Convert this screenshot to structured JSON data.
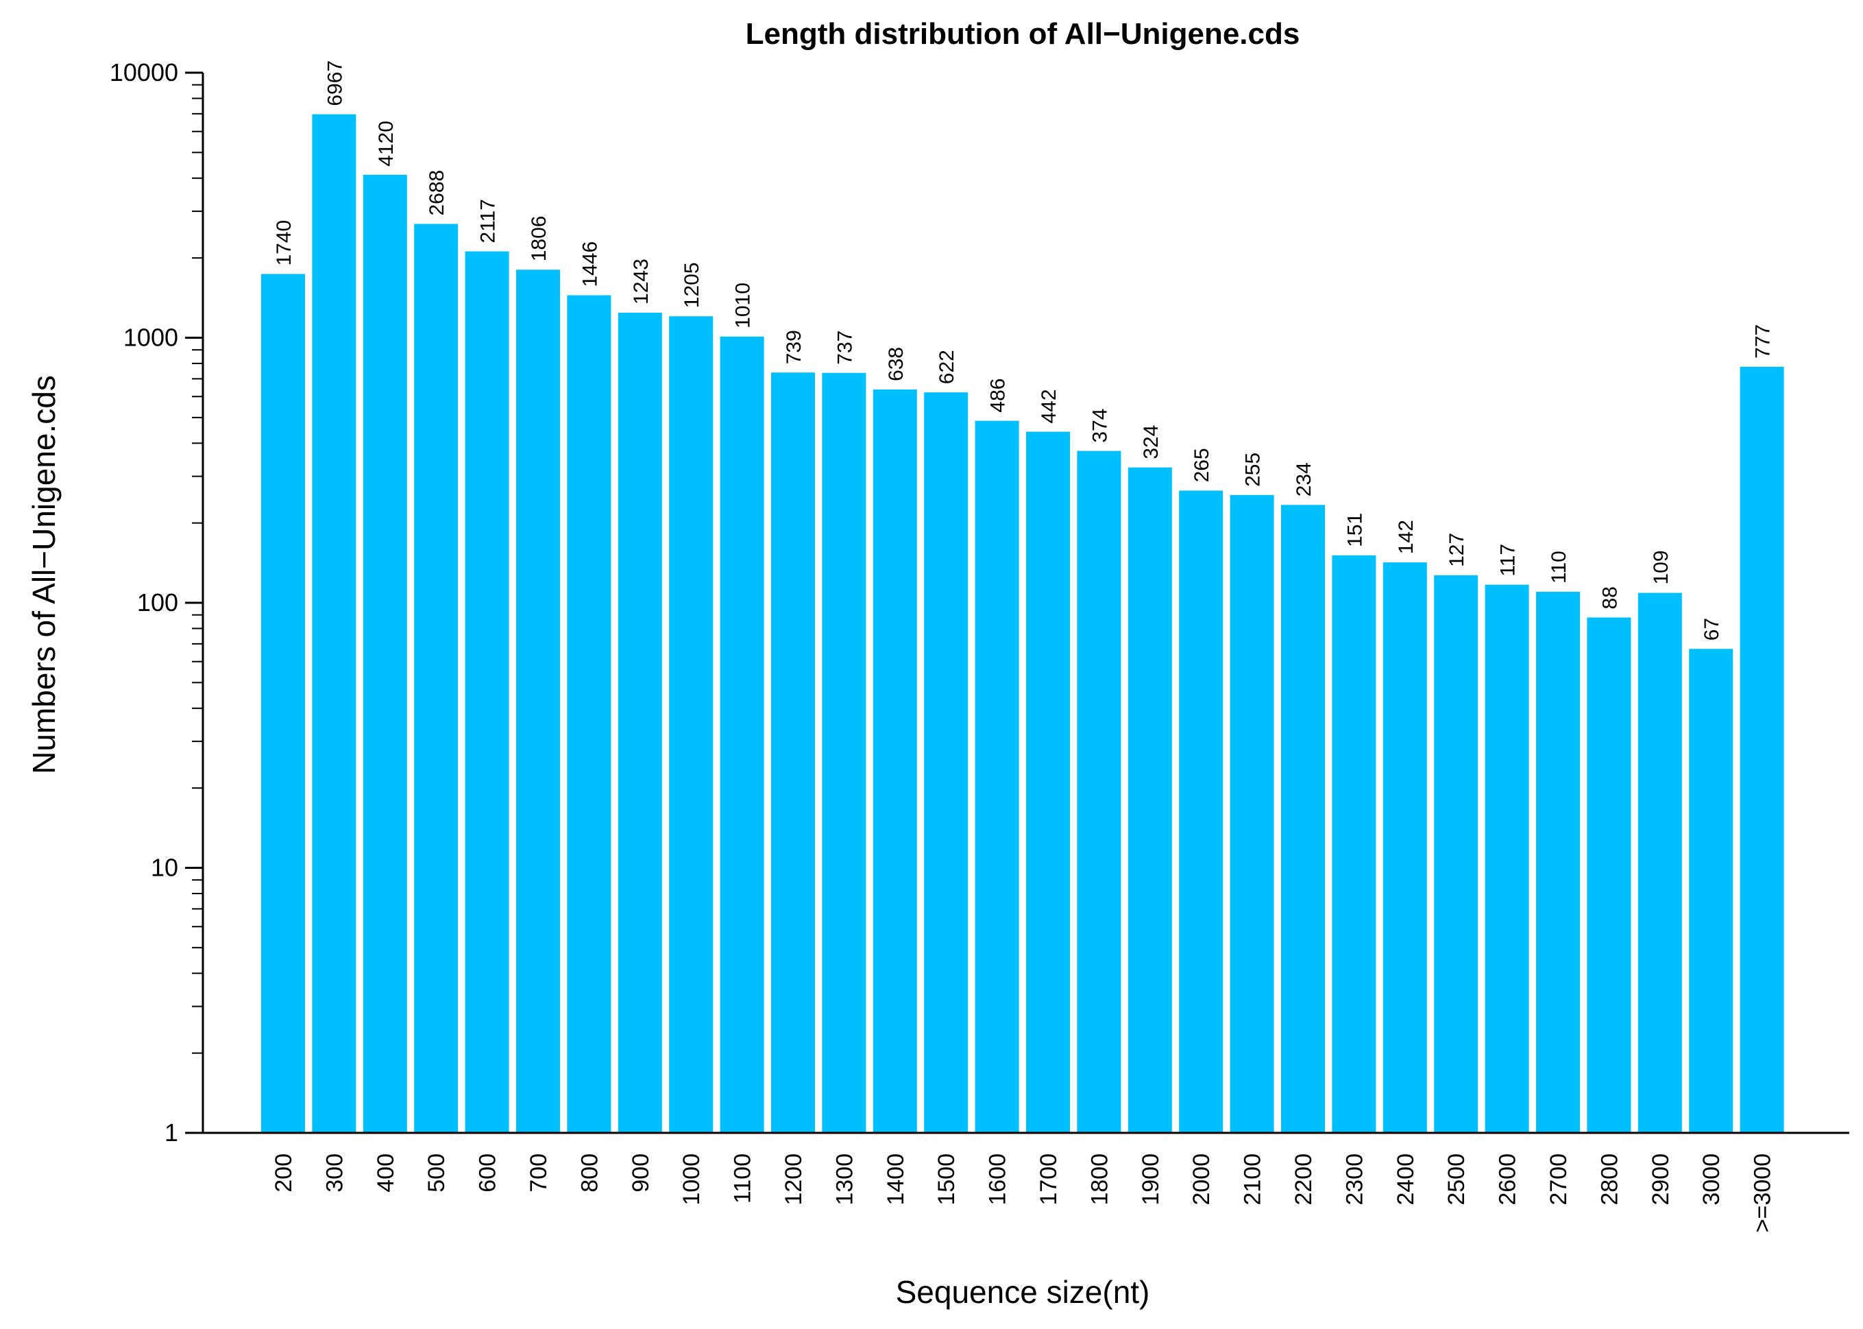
{
  "chart_data": {
    "type": "bar",
    "title": "Length distribution of All−Unigene.cds",
    "xlabel": "Sequence size(nt)",
    "ylabel": "Numbers of All−Unigene.cds",
    "yscale": "log",
    "ylim": [
      1,
      10000
    ],
    "yticks": [
      1,
      10,
      100,
      1000,
      10000
    ],
    "grid": false,
    "legend": "none",
    "bar_color": "#00bfff",
    "categories": [
      "200",
      "300",
      "400",
      "500",
      "600",
      "700",
      "800",
      "900",
      "1000",
      "1100",
      "1200",
      "1300",
      "1400",
      "1500",
      "1600",
      "1700",
      "1800",
      "1900",
      "2000",
      "2100",
      "2200",
      "2300",
      "2400",
      "2500",
      "2600",
      "2700",
      "2800",
      "2900",
      "3000",
      ">=3000"
    ],
    "values": [
      1740,
      6967,
      4120,
      2688,
      2117,
      1806,
      1446,
      1243,
      1205,
      1010,
      739,
      737,
      638,
      622,
      486,
      442,
      374,
      324,
      265,
      255,
      234,
      151,
      142,
      127,
      117,
      110,
      88,
      109,
      67,
      777
    ]
  }
}
